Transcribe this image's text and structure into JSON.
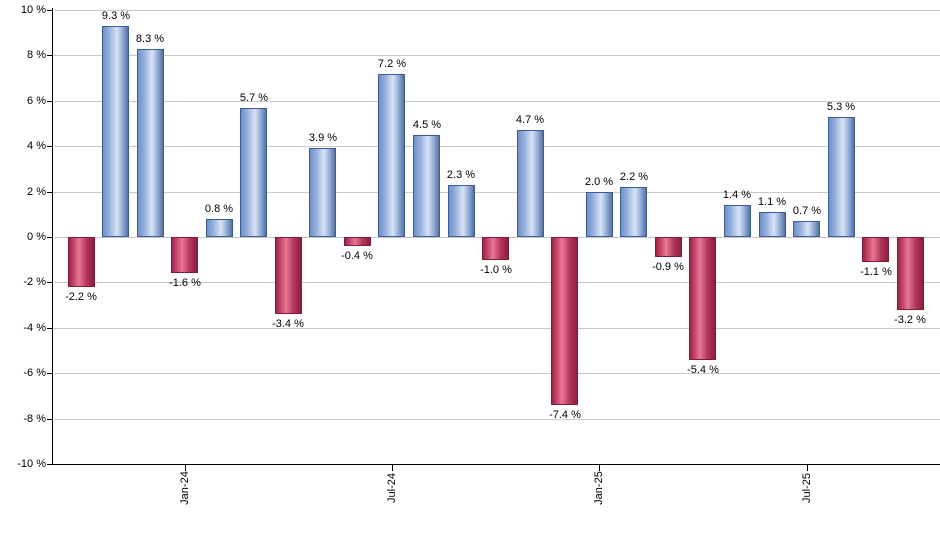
{
  "chart_data": {
    "type": "bar",
    "title": "",
    "xlabel": "",
    "ylabel": "",
    "grid": true,
    "legend_position": "none",
    "ylim": [
      -10,
      10
    ],
    "y_tick_step": 2,
    "y_tick_labels": [
      "10 %",
      "8 %",
      "6 %",
      "4 %",
      "2 %",
      "0 %",
      "-2 %",
      "-4 %",
      "-6 %",
      "-8 %",
      "-10 %"
    ],
    "x_tick_labels": [
      "Jan-24",
      "Jul-24",
      "Jan-25",
      "Jul-25"
    ],
    "x_tick_bar_indices": [
      3,
      9,
      15,
      21
    ],
    "values": [
      -2.2,
      9.3,
      8.3,
      -1.6,
      0.8,
      5.7,
      -3.4,
      3.9,
      -0.4,
      7.2,
      4.5,
      2.3,
      -1.0,
      4.7,
      -7.4,
      2.0,
      2.2,
      -0.9,
      -5.4,
      1.4,
      1.1,
      0.7,
      5.3,
      -1.1,
      -3.2
    ],
    "bar_value_labels": [
      "-2.2 %",
      "9.3 %",
      "8.3 %",
      "-1.6 %",
      "0.8 %",
      "5.7 %",
      "-3.4 %",
      "3.9 %",
      "-0.4 %",
      "7.2 %",
      "4.5 %",
      "2.3 %",
      "-1.0 %",
      "4.7 %",
      "-7.4 %",
      "2.0 %",
      "2.2 %",
      "-0.9 %",
      "-5.4 %",
      "1.4 %",
      "1.1 %",
      "0.7 %",
      "5.3 %",
      "-1.1 %",
      "-3.2 %"
    ],
    "colors": {
      "positive_bar": "#8fabda",
      "positive_bar_highlight": "#d8e3f6",
      "positive_bar_edge": "#3d5c8f",
      "negative_bar": "#c5496c",
      "negative_bar_highlight": "#e87795",
      "negative_bar_edge": "#801b39",
      "gridline": "#c9c9c9",
      "axis": "#000000",
      "text": "#000000",
      "background": "#ffffff"
    }
  }
}
